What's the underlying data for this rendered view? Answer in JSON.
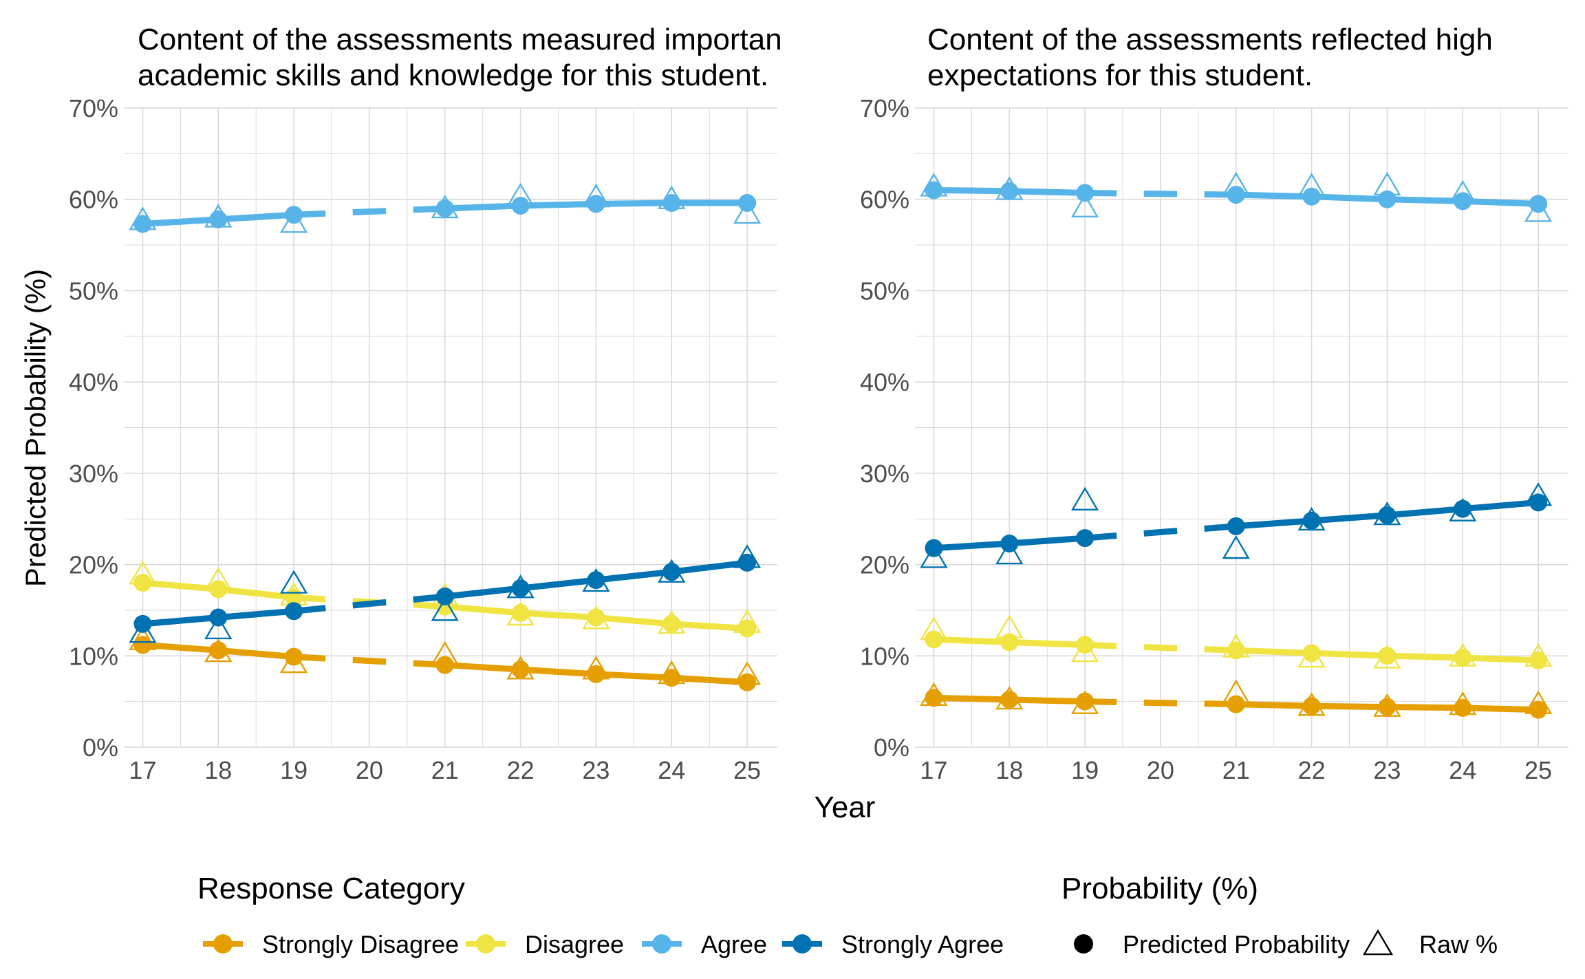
{
  "chart_data": {
    "type": "line",
    "ylabel": "Predicted Probability (%)",
    "xlabel": "Year",
    "ylim": [
      0,
      70
    ],
    "yticks": [
      0,
      10,
      20,
      30,
      40,
      50,
      60,
      70
    ],
    "ytick_labels": [
      "0%",
      "10%",
      "20%",
      "30%",
      "40%",
      "50%",
      "60%",
      "70%"
    ],
    "x": [
      17,
      18,
      19,
      20,
      21,
      22,
      23,
      24,
      25
    ],
    "xtick_labels": [
      "17",
      "18",
      "19",
      "20",
      "21",
      "22",
      "23",
      "24",
      "25"
    ],
    "colors": {
      "Strongly Disagree": "#E69F00",
      "Disagree": "#F0E442",
      "Agree": "#56B4E9",
      "Strongly Agree": "#0072B2",
      "grid": "#d9d9d9",
      "text": "#4d4d4d"
    },
    "panels": [
      {
        "title_line1": "Content of the assessments measured importan",
        "title_line2": "academic skills and knowledge for this student.",
        "series": [
          {
            "name": "Strongly Disagree",
            "predicted": [
              11.2,
              10.6,
              9.9,
              null,
              9.0,
              8.5,
              8.0,
              7.6,
              7.1
            ],
            "raw": [
              11.6,
              10.3,
              9.1,
              null,
              10.0,
              8.4,
              8.4,
              7.9,
              7.8
            ]
          },
          {
            "name": "Disagree",
            "predicted": [
              18.0,
              17.3,
              16.4,
              null,
              15.4,
              14.7,
              14.2,
              13.5,
              13.0
            ],
            "raw": [
              18.8,
              18.1,
              16.5,
              null,
              16.4,
              14.3,
              13.9,
              13.4,
              13.5
            ]
          },
          {
            "name": "Agree",
            "predicted": [
              57.3,
              57.8,
              58.3,
              null,
              59.0,
              59.3,
              59.5,
              59.6,
              59.6
            ],
            "raw": [
              57.6,
              57.9,
              57.3,
              null,
              58.9,
              60.2,
              60.1,
              59.9,
              58.3
            ]
          },
          {
            "name": "Strongly Agree",
            "predicted": [
              13.5,
              14.2,
              14.9,
              null,
              16.5,
              17.4,
              18.3,
              19.2,
              20.2
            ],
            "raw": [
              12.4,
              12.8,
              17.8,
              null,
              14.8,
              17.3,
              18.0,
              19.0,
              20.6
            ]
          }
        ]
      },
      {
        "title_line1": "Content of the assessments reflected high",
        "title_line2": "expectations for this student.",
        "series": [
          {
            "name": "Strongly Disagree",
            "predicted": [
              5.4,
              5.2,
              5.0,
              null,
              4.7,
              4.5,
              4.4,
              4.3,
              4.1
            ],
            "raw": [
              5.5,
              5.1,
              4.6,
              null,
              5.8,
              4.4,
              4.3,
              4.5,
              4.6
            ]
          },
          {
            "name": "Disagree",
            "predicted": [
              11.8,
              11.5,
              11.2,
              null,
              10.6,
              10.3,
              10.0,
              9.8,
              9.5
            ],
            "raw": [
              12.7,
              12.9,
              10.3,
              null,
              10.8,
              9.7,
              9.6,
              9.8,
              9.8
            ]
          },
          {
            "name": "Agree",
            "predicted": [
              61.0,
              60.9,
              60.7,
              null,
              60.5,
              60.3,
              60.0,
              59.8,
              59.5
            ],
            "raw": [
              61.3,
              60.9,
              59.0,
              null,
              61.4,
              61.3,
              61.4,
              60.5,
              58.5
            ]
          },
          {
            "name": "Strongly Agree",
            "predicted": [
              21.8,
              22.3,
              22.9,
              null,
              24.2,
              24.8,
              25.4,
              26.1,
              26.8
            ],
            "raw": [
              20.6,
              21.0,
              26.9,
              null,
              21.6,
              24.7,
              25.3,
              25.7,
              27.4
            ]
          }
        ]
      }
    ],
    "legend": {
      "response_title": "Response Category",
      "response_items": [
        "Strongly Disagree",
        "Disagree",
        "Agree",
        "Strongly Agree"
      ],
      "prob_title": "Probability (%)",
      "prob_items": [
        "Predicted Probability",
        "Raw %"
      ]
    }
  }
}
